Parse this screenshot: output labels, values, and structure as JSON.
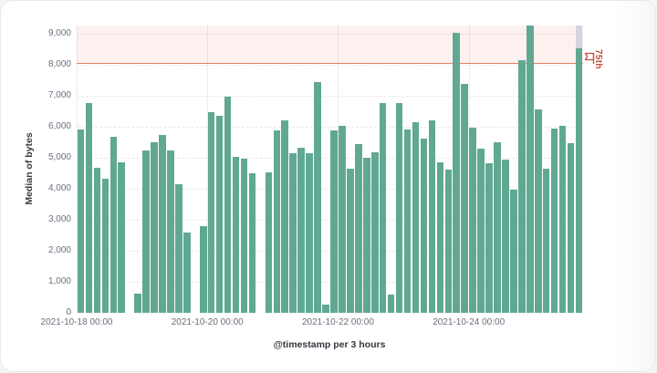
{
  "panel": {
    "background": "#ffffff",
    "border_color": "#e5e8ee"
  },
  "chart_data": {
    "type": "bar",
    "title": "",
    "xlabel": "@timestamp per 3 hours",
    "ylabel": "Median of bytes",
    "bucket_interval": "3 hours",
    "x_start": "2021-10-18 00:00",
    "values": [
      5900,
      6780,
      4680,
      4330,
      5680,
      4840,
      0,
      620,
      5250,
      5500,
      5750,
      5250,
      4150,
      2580,
      0,
      2800,
      6460,
      6340,
      6960,
      5020,
      4960,
      4500,
      0,
      4530,
      5890,
      6200,
      5160,
      5330,
      5140,
      7450,
      260,
      5870,
      6040,
      4660,
      5430,
      5010,
      5180,
      6760,
      600,
      6760,
      5900,
      6150,
      5620,
      6200,
      4860,
      4630,
      9030,
      7380,
      5970,
      5290,
      4810,
      5500,
      4950,
      3970,
      8150,
      9280,
      6550,
      4660,
      5950,
      6020,
      5480,
      8530
    ],
    "x_ticks": [
      {
        "slot": 0,
        "label": "2021-10-18 00:00"
      },
      {
        "slot": 16,
        "label": "2021-10-20 00:00"
      },
      {
        "slot": 32,
        "label": "2021-10-22 00:00"
      },
      {
        "slot": 48,
        "label": "2021-10-24 00:00"
      }
    ],
    "y_ticks": [
      {
        "value": 0,
        "label": "0"
      },
      {
        "value": 1000,
        "label": "1,000"
      },
      {
        "value": 2000,
        "label": "2,000"
      },
      {
        "value": 3000,
        "label": "3,000"
      },
      {
        "value": 4000,
        "label": "4,000"
      },
      {
        "value": 5000,
        "label": "5,000"
      },
      {
        "value": 6000,
        "label": "6,000"
      },
      {
        "value": 7000,
        "label": "7,000"
      },
      {
        "value": 8000,
        "label": "8,000"
      },
      {
        "value": 9000,
        "label": "9,000"
      }
    ],
    "ylim": [
      0,
      9265
    ],
    "grid": true,
    "legend": false,
    "annotation": {
      "label": "75th",
      "value": 8060,
      "line_color": "#ea7c64",
      "text_color": "#c14e36",
      "region_fill": "rgba(229,105,80,0.09)"
    },
    "partial_bucket": {
      "index": 61,
      "cap_color": "#d6d3de"
    },
    "bar_color": "#61a893"
  }
}
